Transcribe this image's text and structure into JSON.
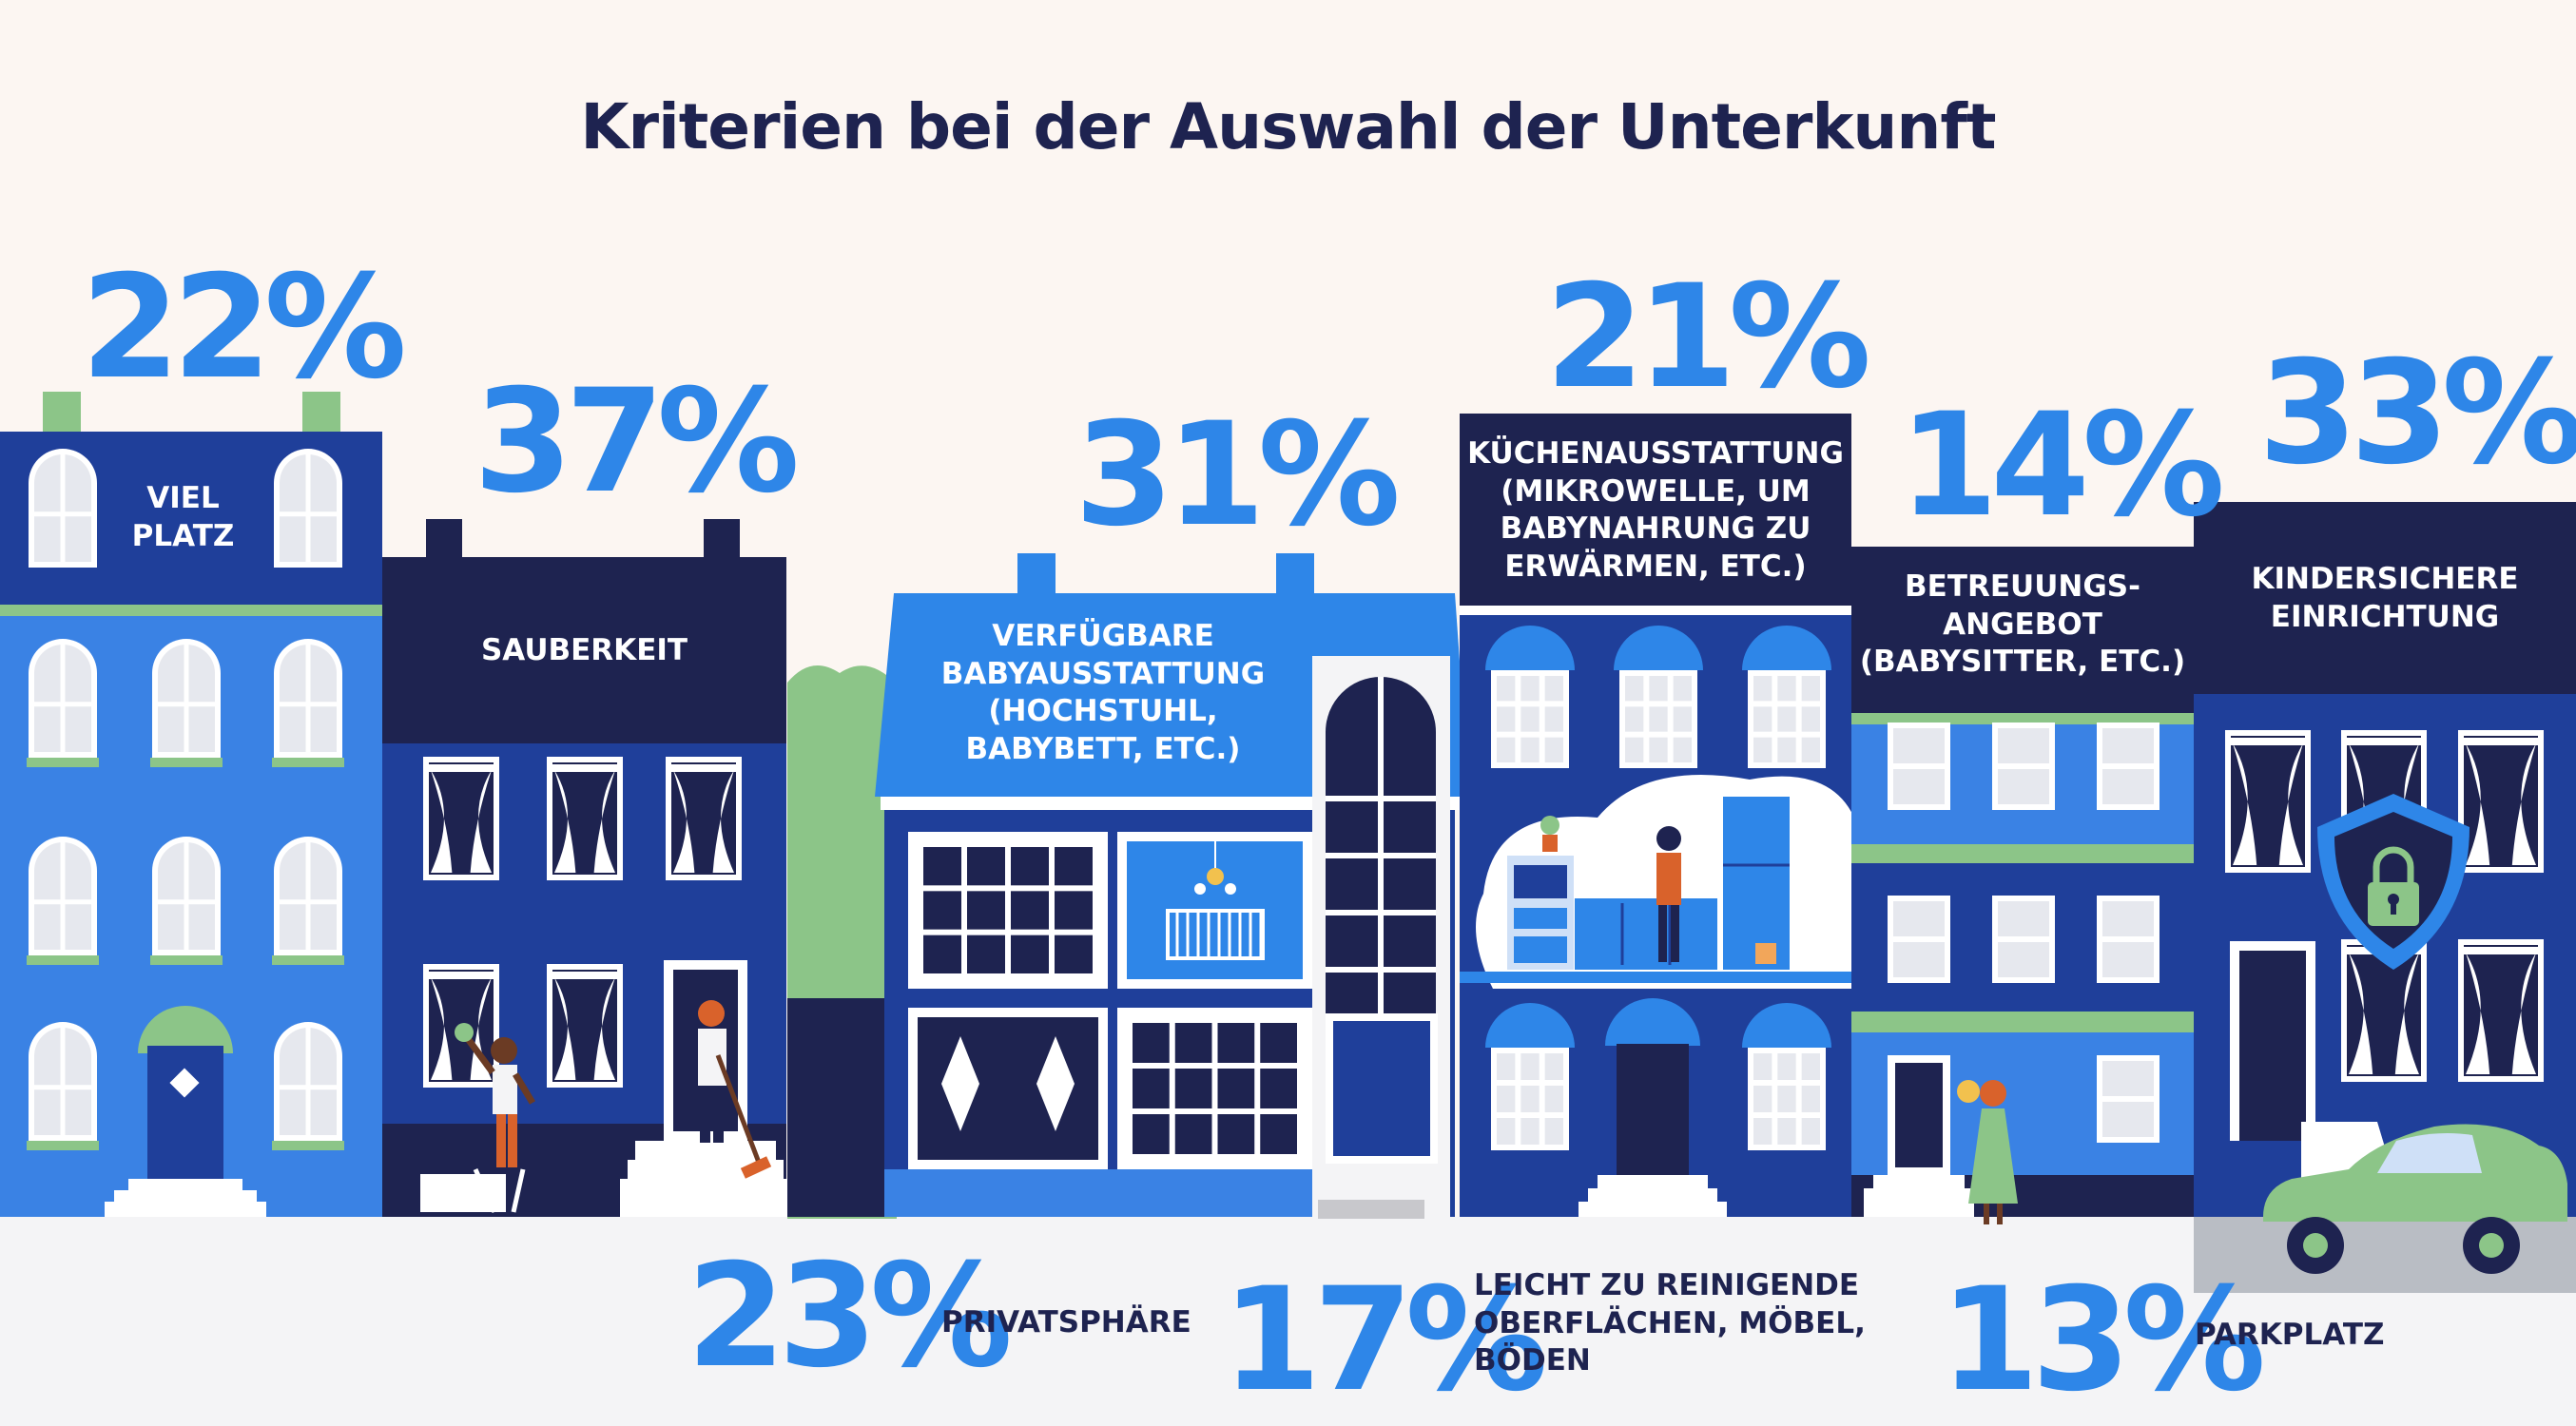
{
  "title": "Kriterien bei der Auswahl der Unterkunft",
  "chart_data": {
    "type": "infographic",
    "title": "Kriterien bei der Auswahl der Unterkunft",
    "items": [
      {
        "label": [
          "VIEL",
          "PLATZ"
        ],
        "value": "22%"
      },
      {
        "label": [
          "SAUBERKEIT"
        ],
        "value": "37%"
      },
      {
        "label": [
          "VERFÜGBARE",
          "BABYAUSSTATTUNG",
          "(HOCHSTUHL,",
          "BABYBETT, ETC.)"
        ],
        "value": "31%"
      },
      {
        "label": [
          "KÜCHENAUSSTATTUNG",
          "(MIKROWELLE, UM",
          "BABYNAHRUNG ZU",
          "ERWÄRMEN, ETC.)"
        ],
        "value": "21%"
      },
      {
        "label": [
          "BETREUUNGS-",
          "ANGEBOT",
          "(BABYSITTER, ETC.)"
        ],
        "value": "14%"
      },
      {
        "label": [
          "KINDERSICHERE",
          "EINRICHTUNG"
        ],
        "value": "33%"
      },
      {
        "label": [
          "PRIVATSPHÄRE"
        ],
        "value": "23%"
      },
      {
        "label": [
          "LEICHT ZU REINIGENDE",
          "OBERFLÄCHEN, MÖBEL,",
          "BÖDEN"
        ],
        "value": "17%"
      },
      {
        "label": [
          "PARKPLATZ"
        ],
        "value": "13%"
      }
    ]
  },
  "colors": {
    "background": "#fcf6f2",
    "navy": "#1e2350",
    "blue": "#2e86e8",
    "mid_blue": "#1f3f9a",
    "light_blue": "#4a8ee6",
    "green": "#8cc588"
  },
  "icons": [
    "lock-shield-icon",
    "car-icon",
    "crib-icon",
    "broom-icon"
  ]
}
